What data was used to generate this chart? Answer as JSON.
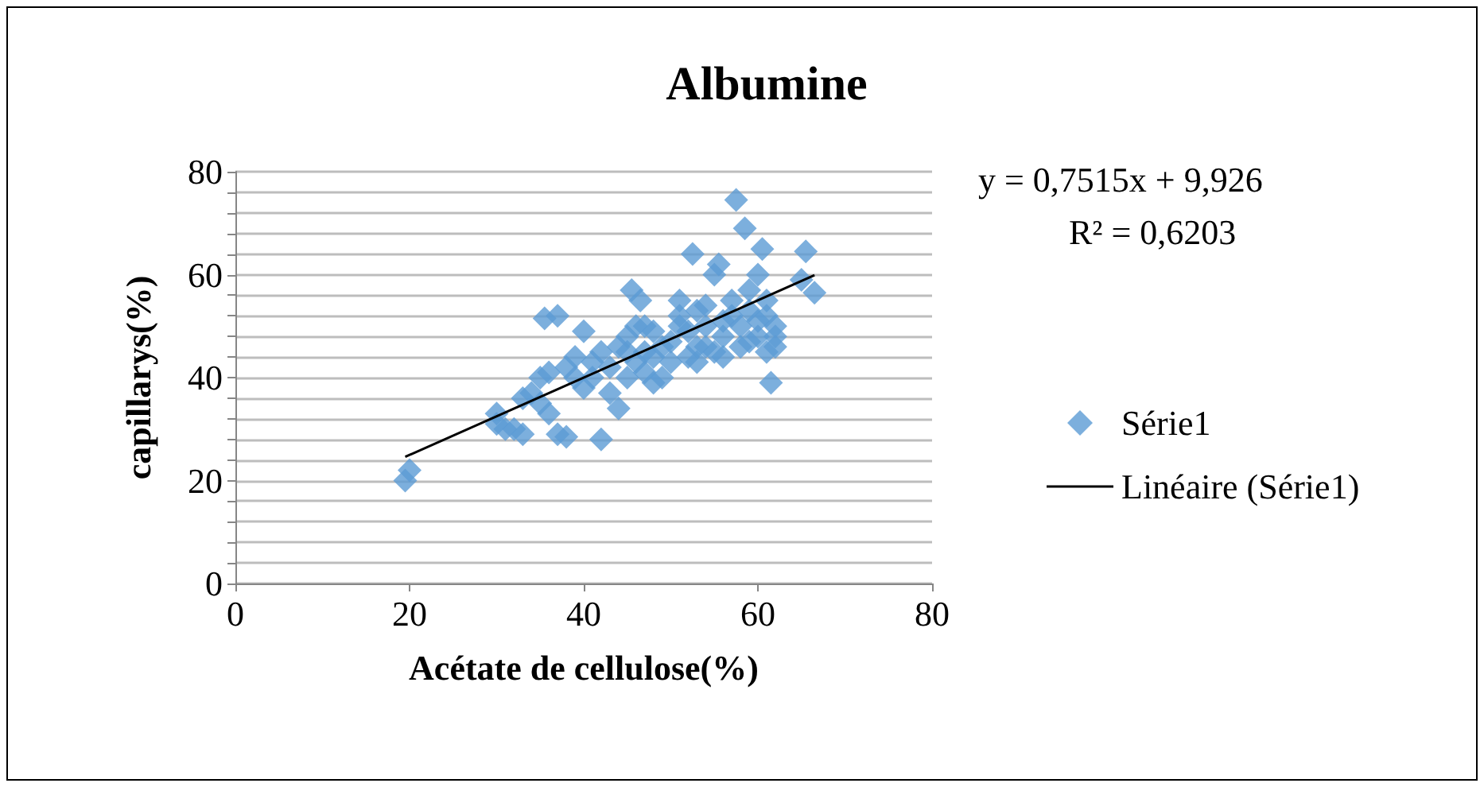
{
  "chart_data": {
    "type": "scatter",
    "title": "Albumine",
    "xlabel": "Acétate de cellulose(%)",
    "ylabel": "capillarys(%)",
    "annotations": [
      "y = 0,7515x + 9,926",
      "R² = 0,6203"
    ],
    "xlim": [
      0,
      80
    ],
    "xticks": [
      0,
      20,
      40,
      60,
      80
    ],
    "ylim": [
      0,
      80
    ],
    "yticks": [
      0,
      {
        "value": 4,
        "label": null
      },
      {
        "value": 8,
        "label": null
      },
      {
        "value": 12,
        "label": null
      },
      {
        "value": 16,
        "label": null
      },
      20,
      {
        "value": 24,
        "label": null
      },
      {
        "value": 28,
        "label": null
      },
      {
        "value": 32,
        "label": null
      },
      {
        "value": 36,
        "label": null
      },
      40,
      {
        "value": 44,
        "label": null
      },
      {
        "value": 48,
        "label": null
      },
      {
        "value": 52,
        "label": null
      },
      {
        "value": 56,
        "label": null
      },
      60,
      {
        "value": 64,
        "label": null
      },
      {
        "value": 68,
        "label": null
      },
      {
        "value": 72,
        "label": null
      },
      {
        "value": 76,
        "label": null
      },
      80
    ],
    "grid": "y",
    "legend": "right",
    "marker": "diamond",
    "series": [
      {
        "name": "Série1",
        "type": "scatter",
        "color": "#5b9bd5",
        "x": [
          19.5,
          20,
          30,
          30,
          31,
          32,
          33,
          33,
          34,
          35,
          35,
          35.5,
          36,
          37,
          37,
          38,
          38,
          39,
          39,
          40,
          40,
          41,
          42,
          42,
          43,
          43,
          44,
          44,
          45,
          45,
          46,
          45.5,
          46,
          46.5,
          47,
          47,
          48,
          48,
          48,
          49,
          49,
          50,
          50,
          51,
          51,
          52,
          52,
          52.5,
          53,
          53,
          54,
          54,
          54,
          55,
          55,
          55.5,
          56,
          56,
          57,
          57,
          57.5,
          58,
          58,
          58.5,
          59,
          59,
          60,
          60,
          60,
          60.5,
          61,
          61,
          61.5,
          62,
          62,
          62,
          65,
          65.5,
          66.5,
          59,
          53,
          56,
          61,
          51,
          47,
          41,
          36,
          45
        ],
        "values": [
          20,
          22,
          33,
          31,
          30,
          30,
          36,
          29,
          37,
          35,
          40,
          51.5,
          41,
          52,
          29,
          28.5,
          42,
          40,
          44,
          38,
          49,
          43,
          28,
          45,
          37,
          42,
          34,
          46,
          40,
          48,
          43,
          57,
          50,
          55,
          41,
          45,
          39,
          49,
          44,
          40,
          46,
          43,
          47,
          52,
          55,
          44,
          49,
          64,
          43,
          53,
          46,
          50,
          54,
          45,
          60,
          62,
          48,
          44,
          52,
          55,
          74.5,
          46,
          50,
          69,
          53,
          57,
          48,
          51,
          60,
          65,
          45,
          52,
          39,
          48,
          46,
          50,
          59,
          64.5,
          56.5,
          47,
          46,
          51,
          55,
          50,
          50,
          40,
          33,
          45
        ]
      },
      {
        "name": "Linéaire (Série1)",
        "type": "line",
        "color": "#000000",
        "marker": "none",
        "x": [
          19.5,
          66.5
        ],
        "values": [
          24.6,
          59.9
        ]
      }
    ]
  }
}
